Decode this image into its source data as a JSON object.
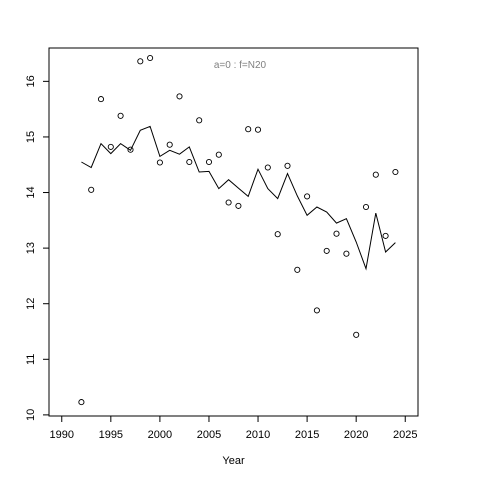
{
  "chart_data": {
    "type": "scatter",
    "title": "",
    "annotation": "a=0  :  f=N20",
    "xlabel": "Year",
    "ylabel": "",
    "xlim": [
      1990,
      2025
    ],
    "ylim": [
      10,
      16.6
    ],
    "xticks": [
      1990,
      1995,
      2000,
      2005,
      2010,
      2015,
      2020,
      2025
    ],
    "yticks": [
      10,
      11,
      12,
      13,
      14,
      15,
      16
    ],
    "grid": false,
    "legend": "none",
    "colors": {
      "points": "#000000",
      "line": "#000000",
      "annotation": "#808080"
    },
    "series": [
      {
        "type": "scatter",
        "marker": "open-circle",
        "x": [
          1992,
          1993,
          1994,
          1995,
          1996,
          1997,
          1998,
          1999,
          2000,
          2001,
          2002,
          2003,
          2004,
          2005,
          2006,
          2007,
          2008,
          2009,
          2010,
          2011,
          2012,
          2013,
          2014,
          2015,
          2016,
          2017,
          2018,
          2019,
          2020,
          2021,
          2022,
          2023,
          2024
        ],
        "y": [
          10.23,
          14.05,
          15.68,
          14.82,
          15.38,
          14.77,
          16.36,
          16.42,
          14.54,
          14.86,
          15.73,
          14.55,
          15.3,
          14.55,
          14.68,
          13.82,
          13.76,
          15.14,
          15.13,
          14.45,
          13.25,
          14.48,
          12.61,
          13.93,
          11.88,
          12.95,
          13.26,
          12.9,
          11.44,
          13.74,
          14.32,
          13.22,
          14.37
        ]
      },
      {
        "type": "line",
        "x": [
          1992,
          1993,
          1994,
          1995,
          1996,
          1997,
          1998,
          1999,
          2000,
          2001,
          2002,
          2003,
          2004,
          2005,
          2006,
          2007,
          2008,
          2009,
          2010,
          2011,
          2012,
          2013,
          2014,
          2015,
          2016,
          2017,
          2018,
          2019,
          2020,
          2021,
          2022,
          2023,
          2024
        ],
        "y": [
          14.55,
          14.45,
          14.88,
          14.7,
          14.88,
          14.76,
          15.12,
          15.19,
          14.65,
          14.76,
          14.69,
          14.82,
          14.37,
          14.38,
          14.07,
          14.23,
          14.08,
          13.93,
          14.42,
          14.07,
          13.89,
          14.34,
          13.94,
          13.59,
          13.74,
          13.65,
          13.45,
          13.53,
          13.11,
          12.63,
          13.63,
          12.93,
          13.1
        ]
      }
    ]
  }
}
